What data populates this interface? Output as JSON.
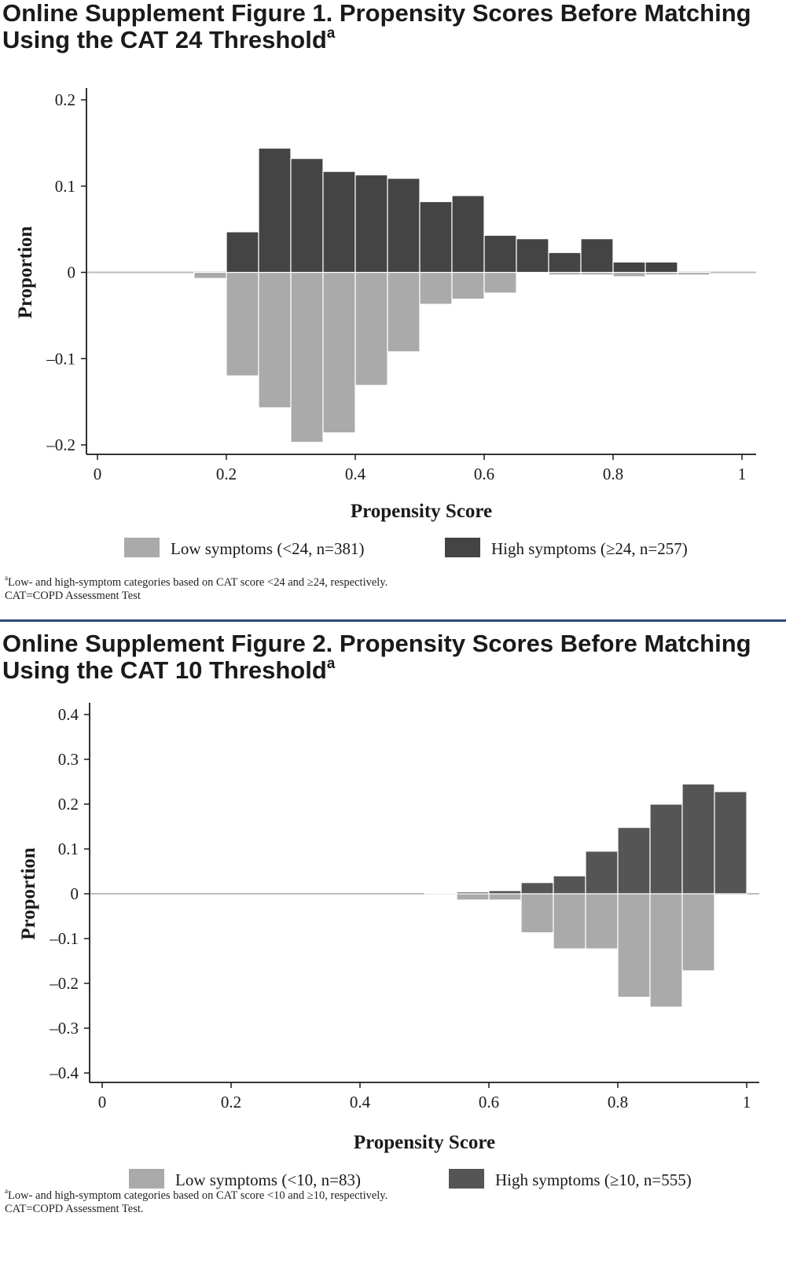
{
  "figures": [
    {
      "title_main": "Online Supplement Figure 1. Propensity Scores Before Matching Using the CAT 24 Threshold",
      "title_sup": "a",
      "footnote_line1_sup": "a",
      "footnote_line1": "Low- and high-symptom categories based on CAT score <24 and ≥24, respectively.",
      "footnote_line2": "CAT=COPD Assessment Test"
    },
    {
      "title_main": "Online Supplement Figure 2. Propensity Scores Before Matching Using the CAT 10 Threshold",
      "title_sup": "a",
      "footnote_line1_sup": "a",
      "footnote_line1": "Low- and high-symptom categories based on CAT score <10 and ≥10, respectively.",
      "footnote_line2": "CAT=COPD Assessment Test."
    }
  ],
  "colors": {
    "low": "#aaaaaa",
    "high": "#444444",
    "high2": "#555555",
    "axis": "#1a1a1a",
    "divider": "#2c4a78"
  },
  "chart_data": [
    {
      "type": "bar",
      "subtype": "back-to-back histogram",
      "xlabel": "Propensity Score",
      "ylabel": "Proportion",
      "xlim": [
        0,
        1
      ],
      "ylim": [
        -0.2,
        0.2
      ],
      "xticks": [
        0,
        0.2,
        0.4,
        0.6,
        0.8,
        1
      ],
      "xtick_labels": [
        "0",
        "0.2",
        "0.4",
        "0.6",
        "0.8",
        "1"
      ],
      "yticks": [
        0.2,
        0.1,
        0,
        -0.1,
        -0.2
      ],
      "ytick_labels": [
        "0.2",
        "0.1",
        "0",
        "–0.1",
        "–0.2"
      ],
      "bin_width": 0.05,
      "bin_starts": [
        0.15,
        0.2,
        0.25,
        0.3,
        0.35,
        0.4,
        0.45,
        0.5,
        0.55,
        0.6,
        0.65,
        0.7,
        0.75,
        0.8,
        0.85,
        0.9
      ],
      "series": [
        {
          "name": "Low symptoms (<24, n=381)",
          "values": [
            -0.007,
            -0.12,
            -0.157,
            -0.197,
            -0.186,
            -0.131,
            -0.092,
            -0.037,
            -0.031,
            -0.024,
            -0.001,
            -0.003,
            -0.003,
            -0.005,
            -0.003,
            -0.003
          ]
        },
        {
          "name": "High symptoms (≥24, n=257)",
          "values": [
            0,
            0.047,
            0.144,
            0.132,
            0.117,
            0.113,
            0.109,
            0.082,
            0.089,
            0.043,
            0.039,
            0.023,
            0.039,
            0.012,
            0.012,
            0
          ]
        }
      ],
      "legend_position": "bottom",
      "grid": false
    },
    {
      "type": "bar",
      "subtype": "back-to-back histogram",
      "xlabel": "Propensity Score",
      "ylabel": "Proportion",
      "xlim": [
        0,
        1
      ],
      "ylim": [
        -0.4,
        0.4
      ],
      "xticks": [
        0,
        0.2,
        0.4,
        0.6,
        0.8,
        1
      ],
      "xtick_labels": [
        "0",
        "0.2",
        "0.4",
        "0.6",
        "0.8",
        "1"
      ],
      "yticks": [
        0.4,
        0.3,
        0.2,
        0.1,
        0,
        -0.1,
        -0.2,
        -0.3,
        -0.4
      ],
      "ytick_labels": [
        "0.4",
        "0.3",
        "0.2",
        "0.1",
        "0",
        "–0.1",
        "–0.2",
        "–0.3",
        "–0.4"
      ],
      "bin_width": 0.05,
      "bin_starts": [
        0.5,
        0.55,
        0.6,
        0.65,
        0.7,
        0.75,
        0.8,
        0.85,
        0.9,
        0.95
      ],
      "series": [
        {
          "name": "Low symptoms (<10, n=83)",
          "values": [
            0,
            -0.014,
            -0.014,
            -0.087,
            -0.123,
            -0.123,
            -0.231,
            -0.253,
            -0.172,
            0
          ]
        },
        {
          "name": "High symptoms (≥10, n=555)",
          "values": [
            0.002,
            0.004,
            0.007,
            0.025,
            0.04,
            0.095,
            0.148,
            0.2,
            0.245,
            0.228
          ]
        }
      ],
      "legend_position": "bottom",
      "grid": false
    }
  ]
}
